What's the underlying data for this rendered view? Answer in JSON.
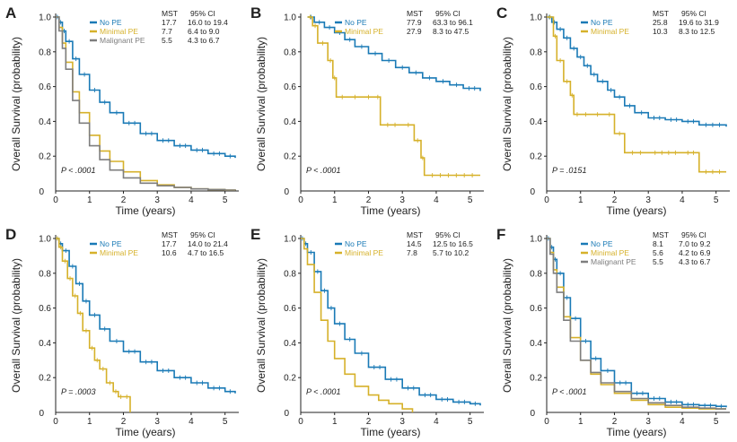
{
  "figure": {
    "colors": {
      "no_pe": "#1a7ab6",
      "minimal_pe": "#d6b12a",
      "malignant_pe": "#7e7e7e",
      "axis": "#222222"
    }
  },
  "chart_data": [
    {
      "panel": "A",
      "type": "line",
      "subtype": "kaplan-meier",
      "xlabel": "Time (years)",
      "ylabel": "Overall Survival (probability)",
      "xlim": [
        0,
        5.3
      ],
      "ylim": [
        0,
        1.0
      ],
      "xticks": [
        "0",
        "1",
        "2",
        "3",
        "4",
        "5"
      ],
      "yticks": [
        "0.2",
        "0.4",
        "0.6",
        "0.8",
        "1.0"
      ],
      "pvalue": "P < .0001",
      "legend_header": {
        "mst": "MST",
        "ci": "95% CI"
      },
      "series": [
        {
          "name": "No PE",
          "key": "no_pe",
          "mst": "17.7",
          "ci": "16.0 to 19.4",
          "censor_ticks": true,
          "x": [
            0,
            0.1,
            0.2,
            0.3,
            0.5,
            0.7,
            1.0,
            1.3,
            1.6,
            2.0,
            2.5,
            3.0,
            3.5,
            4.0,
            4.5,
            5.0,
            5.3
          ],
          "y": [
            1.0,
            0.97,
            0.92,
            0.86,
            0.76,
            0.67,
            0.58,
            0.51,
            0.45,
            0.39,
            0.33,
            0.29,
            0.26,
            0.235,
            0.215,
            0.2,
            0.19
          ]
        },
        {
          "name": "Minimal PE",
          "key": "minimal_pe",
          "mst": "7.7",
          "ci": "6.4 to 9.0",
          "censor_ticks": false,
          "x": [
            0,
            0.1,
            0.2,
            0.3,
            0.5,
            0.7,
            1.0,
            1.3,
            1.6,
            2.0,
            2.5,
            3.0,
            3.5,
            4.0,
            4.5,
            5.0,
            5.3
          ],
          "y": [
            1.0,
            0.94,
            0.85,
            0.74,
            0.57,
            0.45,
            0.32,
            0.23,
            0.17,
            0.11,
            0.06,
            0.035,
            0.02,
            0.012,
            0.008,
            0.005,
            0.003
          ]
        },
        {
          "name": "Malignant PE",
          "key": "malignant_pe",
          "mst": "5.5",
          "ci": "4.3 to 6.7",
          "censor_ticks": false,
          "x": [
            0,
            0.1,
            0.2,
            0.3,
            0.5,
            0.7,
            1.0,
            1.3,
            1.6,
            2.0,
            2.5,
            3.0,
            3.5,
            4.0,
            4.5,
            5.0,
            5.3
          ],
          "y": [
            1.0,
            0.92,
            0.82,
            0.7,
            0.52,
            0.39,
            0.26,
            0.18,
            0.12,
            0.075,
            0.045,
            0.03,
            0.02,
            0.012,
            0.008,
            0.005,
            0.003
          ]
        }
      ]
    },
    {
      "panel": "B",
      "type": "line",
      "subtype": "kaplan-meier",
      "xlabel": "Time (years)",
      "ylabel": "Overall Survival (probability)",
      "xlim": [
        0,
        5.3
      ],
      "ylim": [
        0,
        1.0
      ],
      "xticks": [
        "0",
        "1",
        "2",
        "3",
        "4",
        "5"
      ],
      "yticks": [
        "0.2",
        "0.4",
        "0.6",
        "0.8",
        "1.0"
      ],
      "pvalue": "P < .0001",
      "legend_header": {
        "mst": "MST",
        "ci": "95% CI"
      },
      "series": [
        {
          "name": "No PE",
          "key": "no_pe",
          "mst": "77.9",
          "ci": "63.3 to 96.1",
          "censor_ticks": true,
          "x": [
            0.2,
            0.4,
            0.7,
            1.0,
            1.3,
            1.6,
            2.0,
            2.4,
            2.8,
            3.2,
            3.6,
            4.0,
            4.4,
            4.8,
            5.3
          ],
          "y": [
            1.0,
            0.97,
            0.94,
            0.91,
            0.87,
            0.83,
            0.79,
            0.75,
            0.71,
            0.68,
            0.65,
            0.63,
            0.61,
            0.59,
            0.575
          ]
        },
        {
          "name": "Minimal PE",
          "key": "minimal_pe",
          "mst": "27.9",
          "ci": "8.3 to 47.5",
          "censor_ticks": true,
          "x": [
            0.2,
            0.35,
            0.5,
            0.8,
            0.95,
            1.05,
            1.4,
            1.8,
            2.2,
            2.35,
            3.0,
            3.35,
            3.55,
            3.65,
            5.3
          ],
          "y": [
            1.0,
            0.95,
            0.85,
            0.75,
            0.65,
            0.54,
            0.54,
            0.54,
            0.54,
            0.38,
            0.38,
            0.29,
            0.19,
            0.09,
            0.09
          ]
        }
      ]
    },
    {
      "panel": "C",
      "type": "line",
      "subtype": "kaplan-meier",
      "xlabel": "Time (years)",
      "ylabel": "Overall Survival (probability)",
      "xlim": [
        0,
        5.3
      ],
      "ylim": [
        0,
        1.0
      ],
      "xticks": [
        "0",
        "1",
        "2",
        "3",
        "4",
        "5"
      ],
      "yticks": [
        "0.2",
        "0.4",
        "0.6",
        "0.8",
        "1.0"
      ],
      "pvalue": "P = .0151",
      "legend_header": {
        "mst": "MST",
        "ci": "95% CI"
      },
      "series": [
        {
          "name": "No PE",
          "key": "no_pe",
          "mst": "25.8",
          "ci": "19.6 to 31.9",
          "censor_ticks": true,
          "x": [
            0,
            0.15,
            0.3,
            0.5,
            0.7,
            0.9,
            1.1,
            1.3,
            1.5,
            1.8,
            2.0,
            2.3,
            2.6,
            3.0,
            3.5,
            4.0,
            4.5,
            5.3
          ],
          "y": [
            1.0,
            0.97,
            0.93,
            0.88,
            0.82,
            0.77,
            0.72,
            0.67,
            0.63,
            0.58,
            0.54,
            0.49,
            0.45,
            0.42,
            0.41,
            0.4,
            0.38,
            0.37
          ]
        },
        {
          "name": "Minimal PE",
          "key": "minimal_pe",
          "mst": "10.3",
          "ci": "8.3 to 12.5",
          "censor_ticks": true,
          "x": [
            0,
            0.2,
            0.3,
            0.5,
            0.7,
            0.8,
            1.0,
            1.3,
            1.7,
            2.0,
            2.3,
            3.0,
            4.0,
            4.5,
            5.3
          ],
          "y": [
            1.0,
            0.89,
            0.75,
            0.63,
            0.55,
            0.44,
            0.44,
            0.44,
            0.44,
            0.33,
            0.22,
            0.22,
            0.22,
            0.11,
            0.11
          ]
        }
      ]
    },
    {
      "panel": "D",
      "type": "line",
      "subtype": "kaplan-meier",
      "xlabel": "Time (years)",
      "ylabel": "Overall Survival (probability)",
      "xlim": [
        0,
        5.3
      ],
      "ylim": [
        0,
        1.0
      ],
      "xticks": [
        "0",
        "1",
        "2",
        "3",
        "4",
        "5"
      ],
      "yticks": [
        "0.2",
        "0.4",
        "0.6",
        "0.8",
        "1.0"
      ],
      "pvalue": "P = .0003",
      "legend_header": {
        "mst": "MST",
        "ci": "95% CI"
      },
      "series": [
        {
          "name": "No PE",
          "key": "no_pe",
          "mst": "17.7",
          "ci": "14.0 to 21.4",
          "censor_ticks": true,
          "x": [
            0,
            0.1,
            0.2,
            0.4,
            0.6,
            0.8,
            1.0,
            1.3,
            1.6,
            2.0,
            2.5,
            3.0,
            3.5,
            4.0,
            4.5,
            5.0,
            5.3
          ],
          "y": [
            1.0,
            0.97,
            0.93,
            0.84,
            0.74,
            0.64,
            0.56,
            0.48,
            0.41,
            0.35,
            0.29,
            0.24,
            0.2,
            0.17,
            0.14,
            0.12,
            0.11
          ]
        },
        {
          "name": "Minimal PE",
          "key": "minimal_pe",
          "mst": "10.6",
          "ci": "4.7 to 16.5",
          "censor_ticks": true,
          "x": [
            0,
            0.1,
            0.2,
            0.35,
            0.5,
            0.65,
            0.8,
            1.0,
            1.15,
            1.3,
            1.5,
            1.7,
            1.85,
            2.0,
            2.2
          ],
          "y": [
            1.0,
            0.95,
            0.87,
            0.77,
            0.67,
            0.57,
            0.47,
            0.37,
            0.3,
            0.25,
            0.17,
            0.12,
            0.09,
            0.09,
            0.0
          ]
        }
      ]
    },
    {
      "panel": "E",
      "type": "line",
      "subtype": "kaplan-meier",
      "xlabel": "Time (years)",
      "ylabel": "Overall Survival (probability)",
      "xlim": [
        0,
        5.3
      ],
      "ylim": [
        0,
        1.0
      ],
      "xticks": [
        "0",
        "1",
        "2",
        "3",
        "4",
        "5"
      ],
      "yticks": [
        "0.2",
        "0.4",
        "0.6",
        "0.8",
        "1.0"
      ],
      "pvalue": "P < .0001",
      "legend_header": {
        "mst": "MST",
        "ci": "95% CI"
      },
      "series": [
        {
          "name": "No PE",
          "key": "no_pe",
          "mst": "14.5",
          "ci": "12.5 to 16.5",
          "censor_ticks": true,
          "x": [
            0,
            0.1,
            0.2,
            0.4,
            0.6,
            0.8,
            1.0,
            1.3,
            1.6,
            2.0,
            2.5,
            3.0,
            3.5,
            4.0,
            4.5,
            5.0,
            5.3
          ],
          "y": [
            1.0,
            0.97,
            0.92,
            0.81,
            0.7,
            0.6,
            0.51,
            0.42,
            0.34,
            0.26,
            0.19,
            0.14,
            0.1,
            0.075,
            0.06,
            0.05,
            0.04
          ]
        },
        {
          "name": "Minimal PE",
          "key": "minimal_pe",
          "mst": "7.8",
          "ci": "5.7 to 10.2",
          "censor_ticks": false,
          "x": [
            0,
            0.1,
            0.2,
            0.4,
            0.6,
            0.8,
            1.0,
            1.3,
            1.6,
            2.0,
            2.3,
            2.6,
            3.0,
            3.3
          ],
          "y": [
            1.0,
            0.94,
            0.85,
            0.69,
            0.53,
            0.41,
            0.31,
            0.22,
            0.15,
            0.1,
            0.07,
            0.05,
            0.02,
            0.0
          ]
        }
      ]
    },
    {
      "panel": "F",
      "type": "line",
      "subtype": "kaplan-meier",
      "xlabel": "Time (years)",
      "ylabel": "Overall Survival (probability)",
      "xlim": [
        0,
        5.3
      ],
      "ylim": [
        0,
        1.0
      ],
      "xticks": [
        "0",
        "1",
        "2",
        "3",
        "4",
        "5"
      ],
      "yticks": [
        "0.2",
        "0.4",
        "0.6",
        "0.8",
        "1.0"
      ],
      "pvalue": "P < .0001",
      "legend_header": {
        "mst": "MST",
        "ci": "95% CI"
      },
      "series": [
        {
          "name": "No PE",
          "key": "no_pe",
          "mst": "8.1",
          "ci": "7.0 to 9.2",
          "censor_ticks": true,
          "x": [
            0,
            0.1,
            0.2,
            0.3,
            0.5,
            0.7,
            1.0,
            1.3,
            1.6,
            2.0,
            2.5,
            3.0,
            3.5,
            4.0,
            4.5,
            5.0,
            5.3
          ],
          "y": [
            1.0,
            0.95,
            0.88,
            0.8,
            0.66,
            0.54,
            0.41,
            0.31,
            0.24,
            0.17,
            0.11,
            0.08,
            0.06,
            0.045,
            0.04,
            0.035,
            0.03
          ]
        },
        {
          "name": "Minimal PE",
          "key": "minimal_pe",
          "mst": "5.6",
          "ci": "4.2 to 6.9",
          "censor_ticks": false,
          "x": [
            0,
            0.1,
            0.2,
            0.3,
            0.5,
            0.7,
            1.0,
            1.3,
            1.6,
            2.0,
            2.5,
            3.0,
            3.5,
            4.0,
            4.5,
            5.0,
            5.3
          ],
          "y": [
            1.0,
            0.92,
            0.82,
            0.72,
            0.55,
            0.43,
            0.3,
            0.22,
            0.16,
            0.11,
            0.07,
            0.045,
            0.03,
            0.025,
            0.02,
            0.02,
            0.02
          ]
        },
        {
          "name": "Malignant PE",
          "key": "malignant_pe",
          "mst": "5.5",
          "ci": "4.3 to 6.7",
          "censor_ticks": false,
          "x": [
            0,
            0.1,
            0.2,
            0.3,
            0.5,
            0.7,
            1.0,
            1.3,
            1.6,
            2.0,
            2.5,
            3.0,
            3.5,
            4.0,
            4.5,
            5.0,
            5.3
          ],
          "y": [
            1.0,
            0.91,
            0.8,
            0.69,
            0.53,
            0.41,
            0.3,
            0.23,
            0.17,
            0.12,
            0.08,
            0.055,
            0.04,
            0.03,
            0.025,
            0.02,
            0.02
          ]
        }
      ]
    }
  ]
}
